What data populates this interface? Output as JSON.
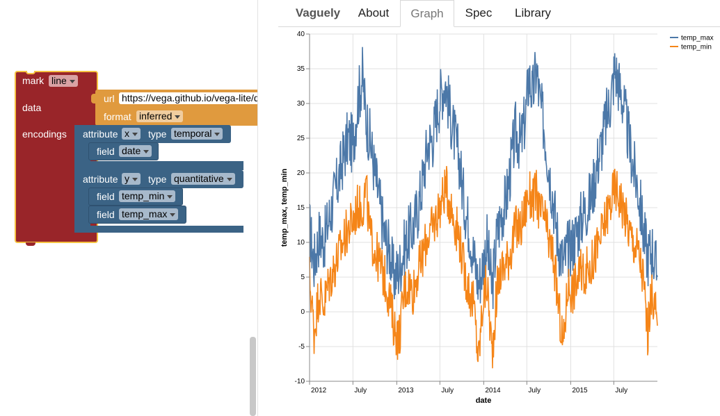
{
  "tabs": {
    "brand": "Vaguely",
    "items": [
      "About",
      "Graph",
      "Spec",
      "Library"
    ],
    "active": "Graph"
  },
  "blocks": {
    "mark": {
      "label": "mark",
      "value": "line"
    },
    "data": {
      "label": "data"
    },
    "url": {
      "label": "url",
      "value": "https://vega.github.io/vega-lite/data/seattle-weather.csv"
    },
    "format": {
      "label": "format",
      "value": "inferred"
    },
    "encodings": {
      "label": "encodings"
    },
    "attr_x": {
      "attribute_label": "attribute",
      "attribute_value": "x",
      "type_label": "type",
      "type_value": "temporal"
    },
    "field_date": {
      "label": "field",
      "value": "date"
    },
    "attr_y": {
      "attribute_label": "attribute",
      "attribute_value": "y",
      "type_label": "type",
      "type_value": "quantitative"
    },
    "field_temp_min": {
      "label": "field",
      "value": "temp_min"
    },
    "field_temp_max": {
      "label": "field",
      "value": "temp_max"
    }
  },
  "chart_data": {
    "type": "line",
    "xlabel": "date",
    "ylabel": "temp_max, temp_min",
    "ylim": [
      -10,
      40
    ],
    "yticks": [
      -10,
      -5,
      0,
      5,
      10,
      15,
      20,
      25,
      30,
      35,
      40
    ],
    "xlim": [
      "2012-01-01",
      "2015-12-31"
    ],
    "xticks": [
      {
        "date": "2012-01-01",
        "label": "2012"
      },
      {
        "date": "2012-07-01",
        "label": "July"
      },
      {
        "date": "2013-01-01",
        "label": "2013"
      },
      {
        "date": "2013-07-01",
        "label": "July"
      },
      {
        "date": "2014-01-01",
        "label": "2014"
      },
      {
        "date": "2014-07-01",
        "label": "July"
      },
      {
        "date": "2015-01-01",
        "label": "2015"
      },
      {
        "date": "2015-07-01",
        "label": "July"
      }
    ],
    "grid": true,
    "legend_position": "top-right",
    "series": [
      {
        "name": "temp_max",
        "color": "#4c78a8",
        "points": [
          [
            "2012-01-01",
            12
          ],
          [
            "2012-01-20",
            7
          ],
          [
            "2012-02-10",
            11
          ],
          [
            "2012-03-01",
            10
          ],
          [
            "2012-03-20",
            13
          ],
          [
            "2012-04-10",
            16
          ],
          [
            "2012-05-01",
            19
          ],
          [
            "2012-05-20",
            22
          ],
          [
            "2012-06-10",
            25
          ],
          [
            "2012-07-01",
            24
          ],
          [
            "2012-07-20",
            30
          ],
          [
            "2012-08-10",
            34
          ],
          [
            "2012-08-25",
            28
          ],
          [
            "2012-09-10",
            25
          ],
          [
            "2012-10-01",
            20
          ],
          [
            "2012-10-20",
            16
          ],
          [
            "2012-11-10",
            11
          ],
          [
            "2012-12-01",
            9
          ],
          [
            "2012-12-20",
            5
          ],
          [
            "2013-01-10",
            6
          ],
          [
            "2013-02-01",
            9
          ],
          [
            "2013-02-20",
            11
          ],
          [
            "2013-03-10",
            12
          ],
          [
            "2013-04-01",
            15
          ],
          [
            "2013-04-20",
            19
          ],
          [
            "2013-05-10",
            24
          ],
          [
            "2013-06-01",
            25
          ],
          [
            "2013-06-20",
            29
          ],
          [
            "2013-07-10",
            32
          ],
          [
            "2013-07-25",
            33
          ],
          [
            "2013-08-10",
            29
          ],
          [
            "2013-09-01",
            25
          ],
          [
            "2013-09-20",
            22
          ],
          [
            "2013-10-10",
            16
          ],
          [
            "2013-11-01",
            12
          ],
          [
            "2013-11-20",
            8
          ],
          [
            "2013-12-10",
            4
          ],
          [
            "2013-12-30",
            7
          ],
          [
            "2014-01-15",
            10
          ],
          [
            "2014-02-05",
            3
          ],
          [
            "2014-02-25",
            11
          ],
          [
            "2014-03-15",
            14
          ],
          [
            "2014-04-05",
            16
          ],
          [
            "2014-04-25",
            21
          ],
          [
            "2014-05-15",
            26
          ],
          [
            "2014-06-05",
            24
          ],
          [
            "2014-06-25",
            28
          ],
          [
            "2014-07-10",
            34
          ],
          [
            "2014-07-25",
            31
          ],
          [
            "2014-08-10",
            35
          ],
          [
            "2014-08-25",
            30
          ],
          [
            "2014-09-10",
            27
          ],
          [
            "2014-10-01",
            21
          ],
          [
            "2014-10-20",
            16
          ],
          [
            "2014-11-10",
            10
          ],
          [
            "2014-12-01",
            7
          ],
          [
            "2014-12-20",
            9
          ],
          [
            "2015-01-10",
            10
          ],
          [
            "2015-02-01",
            12
          ],
          [
            "2015-02-20",
            14
          ],
          [
            "2015-03-10",
            15
          ],
          [
            "2015-04-01",
            17
          ],
          [
            "2015-04-20",
            21
          ],
          [
            "2015-05-10",
            24
          ],
          [
            "2015-06-01",
            28
          ],
          [
            "2015-06-20",
            31
          ],
          [
            "2015-07-05",
            35
          ],
          [
            "2015-07-20",
            33
          ],
          [
            "2015-08-10",
            30
          ],
          [
            "2015-09-01",
            25
          ],
          [
            "2015-09-20",
            21
          ],
          [
            "2015-10-10",
            18
          ],
          [
            "2015-11-01",
            12
          ],
          [
            "2015-11-20",
            8
          ],
          [
            "2015-12-10",
            9
          ],
          [
            "2015-12-31",
            5
          ]
        ]
      },
      {
        "name": "temp_min",
        "color": "#f58518",
        "points": [
          [
            "2012-01-01",
            5
          ],
          [
            "2012-01-20",
            -3
          ],
          [
            "2012-02-10",
            3
          ],
          [
            "2012-03-01",
            1
          ],
          [
            "2012-03-20",
            4
          ],
          [
            "2012-04-10",
            6
          ],
          [
            "2012-05-01",
            8
          ],
          [
            "2012-05-20",
            10
          ],
          [
            "2012-06-10",
            12
          ],
          [
            "2012-07-01",
            13
          ],
          [
            "2012-07-20",
            15
          ],
          [
            "2012-08-10",
            15
          ],
          [
            "2012-08-25",
            18
          ],
          [
            "2012-09-10",
            11
          ],
          [
            "2012-10-01",
            9
          ],
          [
            "2012-10-20",
            7
          ],
          [
            "2012-11-10",
            5
          ],
          [
            "2012-12-01",
            2
          ],
          [
            "2012-12-20",
            -2
          ],
          [
            "2013-01-10",
            -4
          ],
          [
            "2013-02-01",
            3
          ],
          [
            "2013-02-20",
            4
          ],
          [
            "2013-03-10",
            3
          ],
          [
            "2013-04-01",
            6
          ],
          [
            "2013-04-20",
            8
          ],
          [
            "2013-05-10",
            11
          ],
          [
            "2013-06-01",
            12
          ],
          [
            "2013-06-20",
            14
          ],
          [
            "2013-07-10",
            16
          ],
          [
            "2013-07-25",
            18
          ],
          [
            "2013-08-10",
            16
          ],
          [
            "2013-09-01",
            13
          ],
          [
            "2013-09-20",
            11
          ],
          [
            "2013-10-10",
            6
          ],
          [
            "2013-11-01",
            3
          ],
          [
            "2013-11-20",
            1
          ],
          [
            "2013-12-10",
            -7
          ],
          [
            "2013-12-30",
            2
          ],
          [
            "2014-01-15",
            4
          ],
          [
            "2014-02-05",
            -6
          ],
          [
            "2014-02-25",
            3
          ],
          [
            "2014-03-15",
            6
          ],
          [
            "2014-04-05",
            7
          ],
          [
            "2014-04-25",
            9
          ],
          [
            "2014-05-15",
            12
          ],
          [
            "2014-06-05",
            12
          ],
          [
            "2014-06-25",
            15
          ],
          [
            "2014-07-10",
            17
          ],
          [
            "2014-07-25",
            16
          ],
          [
            "2014-08-10",
            17
          ],
          [
            "2014-08-25",
            14
          ],
          [
            "2014-09-10",
            14
          ],
          [
            "2014-10-01",
            10
          ],
          [
            "2014-10-20",
            8
          ],
          [
            "2014-11-10",
            1
          ],
          [
            "2014-12-01",
            -5
          ],
          [
            "2014-12-20",
            4
          ],
          [
            "2015-01-10",
            3
          ],
          [
            "2015-02-01",
            5
          ],
          [
            "2015-02-20",
            6
          ],
          [
            "2015-03-10",
            6
          ],
          [
            "2015-04-01",
            7
          ],
          [
            "2015-04-20",
            9
          ],
          [
            "2015-05-10",
            11
          ],
          [
            "2015-06-01",
            14
          ],
          [
            "2015-06-20",
            16
          ],
          [
            "2015-07-05",
            18
          ],
          [
            "2015-07-20",
            17
          ],
          [
            "2015-08-10",
            15
          ],
          [
            "2015-09-01",
            12
          ],
          [
            "2015-09-20",
            10
          ],
          [
            "2015-10-10",
            9
          ],
          [
            "2015-11-01",
            5
          ],
          [
            "2015-11-20",
            -3
          ],
          [
            "2015-12-10",
            3
          ],
          [
            "2015-12-31",
            -2
          ]
        ]
      }
    ]
  }
}
